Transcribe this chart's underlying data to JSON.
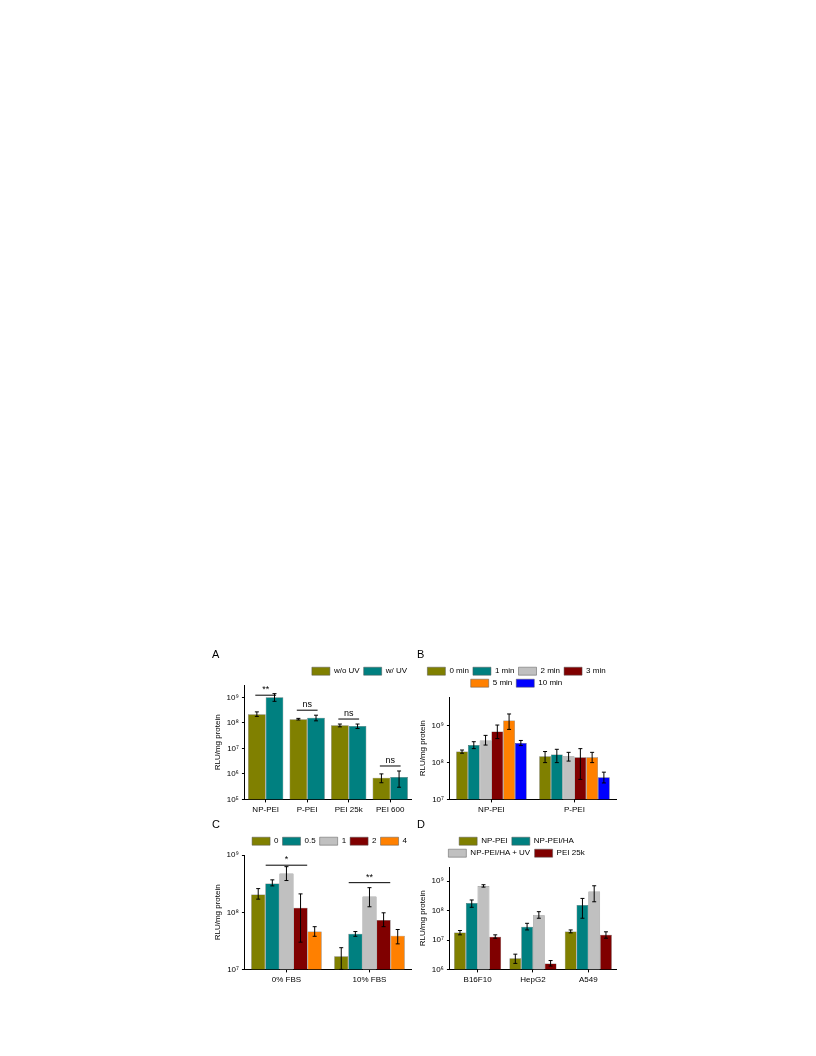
{
  "chart_data": [
    {
      "type": "bar",
      "title": "A",
      "ylabel": "RLU/mg protein",
      "categories": [
        "NP-PEI",
        "P-PEI",
        "PEI 25k",
        "PEI 600"
      ],
      "log": true,
      "ylim": [
        100000,
        3000000000
      ],
      "yticks": [
        {
          "value": 100000,
          "label": "10⁵"
        },
        {
          "value": 1000000,
          "label": "10⁶"
        },
        {
          "value": 10000000,
          "label": "10⁷"
        },
        {
          "value": 100000000,
          "label": "10⁸"
        },
        {
          "value": 1000000000,
          "label": "10⁹"
        }
      ],
      "legend": "top right",
      "grid": false,
      "series": [
        {
          "name": "w/o UV",
          "color": "#808000",
          "values": [
            220000000,
            140000000,
            80000000,
            700000
          ],
          "errors": [
            [
              180000000,
              270000000
            ],
            [
              130000000,
              150000000
            ],
            [
              70000000,
              90000000
            ],
            [
              450000,
              1000000
            ]
          ]
        },
        {
          "name": "w/ UV",
          "color": "#008080",
          "values": [
            1000000000,
            160000000,
            75000000,
            750000
          ],
          "errors": [
            [
              700000000,
              1400000000
            ],
            [
              120000000,
              200000000
            ],
            [
              60000000,
              90000000
            ],
            [
              300000,
              1300000
            ]
          ]
        }
      ],
      "annotations": [
        "**",
        "ns",
        "ns",
        "ns"
      ]
    },
    {
      "type": "bar",
      "title": "B",
      "ylabel": "RLU/mg protein",
      "categories": [
        "NP-PEI",
        "P-PEI"
      ],
      "log": true,
      "ylim": [
        10000000,
        6000000000
      ],
      "yticks": [
        {
          "value": 10000000,
          "label": "10⁷"
        },
        {
          "value": 100000000,
          "label": "10⁸"
        },
        {
          "value": 1000000000,
          "label": "10⁹"
        }
      ],
      "legend": "top",
      "grid": false,
      "series": [
        {
          "name": "0 min",
          "color": "#808000",
          "values": [
            200000000,
            150000000
          ],
          "errors": [
            [
              180000000,
              220000000
            ],
            [
              100000000,
              200000000
            ]
          ]
        },
        {
          "name": "1 min",
          "color": "#008080",
          "values": [
            300000000,
            165000000
          ],
          "errors": [
            [
              240000000,
              370000000
            ],
            [
              100000000,
              230000000
            ]
          ]
        },
        {
          "name": "2 min",
          "color": "#c0c0c0",
          "values": [
            400000000,
            150000000
          ],
          "errors": [
            [
              300000000,
              550000000
            ],
            [
              110000000,
              190000000
            ]
          ]
        },
        {
          "name": "3 min",
          "color": "#800000",
          "values": [
            700000000,
            140000000
          ],
          "errors": [
            [
              450000000,
              1050000000
            ],
            [
              35000000,
              240000000
            ]
          ]
        },
        {
          "name": "5 min",
          "color": "#ff8000",
          "values": [
            1400000000,
            140000000
          ],
          "errors": [
            [
              800000000,
              2100000000
            ],
            [
              100000000,
              190000000
            ]
          ]
        },
        {
          "name": "10 min",
          "color": "#0000ff",
          "values": [
            340000000,
            40000000
          ],
          "errors": [
            [
              290000000,
              400000000
            ],
            [
              28000000,
              55000000
            ]
          ]
        }
      ]
    },
    {
      "type": "bar",
      "title": "C",
      "ylabel": "RLU/mg protein",
      "categories": [
        "0% FBS",
        "10% FBS"
      ],
      "log": true,
      "ylim": [
        10000000,
        1000000000
      ],
      "yticks": [
        {
          "value": 10000000,
          "label": "10⁷"
        },
        {
          "value": 100000000,
          "label": "10⁸"
        },
        {
          "value": 1000000000,
          "label": "10⁹"
        }
      ],
      "legend": "top right",
      "grid": false,
      "series": [
        {
          "name": "0",
          "color": "#808000",
          "values": [
            205000000,
            17000000
          ],
          "errors": [
            [
              170000000,
              260000000
            ],
            [
              10000000,
              24000000
            ]
          ]
        },
        {
          "name": "0.5",
          "color": "#008080",
          "values": [
            320000000,
            42000000
          ],
          "errors": [
            [
              290000000,
              370000000
            ],
            [
              38000000,
              46000000
            ]
          ]
        },
        {
          "name": "1",
          "color": "#c0c0c0",
          "values": [
            480000000,
            190000000
          ],
          "errors": [
            [
              360000000,
              630000000
            ],
            [
              125000000,
              270000000
            ]
          ]
        },
        {
          "name": "2",
          "color": "#800000",
          "values": [
            120000000,
            73000000
          ],
          "errors": [
            [
              30000000,
              210000000
            ],
            [
              56000000,
              98000000
            ]
          ]
        },
        {
          "name": "4",
          "color": "#ff8000",
          "values": [
            46000000,
            39000000
          ],
          "errors": [
            [
              38000000,
              56000000
            ],
            [
              28000000,
              50000000
            ]
          ]
        }
      ],
      "annotations": [
        "*",
        "**"
      ]
    },
    {
      "type": "bar",
      "title": "D",
      "ylabel": "RLU/mg protein",
      "categories": [
        "B16F10",
        "HepG2",
        "A549"
      ],
      "log": true,
      "ylim": [
        1000000,
        3000000000
      ],
      "yticks": [
        {
          "value": 1000000,
          "label": "10⁶"
        },
        {
          "value": 10000000,
          "label": "10⁷"
        },
        {
          "value": 100000000,
          "label": "10⁸"
        },
        {
          "value": 1000000000,
          "label": "10⁹"
        }
      ],
      "legend": "top",
      "grid": false,
      "series": [
        {
          "name": "NP-PEI",
          "color": "#808000",
          "values": [
            18000000,
            2400000,
            19500000
          ],
          "errors": [
            [
              15000000,
              21000000
            ],
            [
              1600000,
              3300000
            ],
            [
              17500000,
              22000000
            ]
          ]
        },
        {
          "name": "NP-PEI/HA",
          "color": "#008080",
          "values": [
            180000000,
            28000000,
            155000000
          ],
          "errors": [
            [
              130000000,
              230000000
            ],
            [
              22000000,
              37000000
            ],
            [
              55000000,
              260000000
            ]
          ]
        },
        {
          "name": "NP-PEI/HA + UV",
          "color": "#c0c0c0",
          "values": [
            690000000,
            70000000,
            450000000
          ],
          "errors": [
            [
              630000000,
              760000000
            ],
            [
              55000000,
              92000000
            ],
            [
              200000000,
              700000000
            ]
          ]
        },
        {
          "name": "PEI 25k",
          "color": "#800000",
          "values": [
            13000000,
            1600000,
            15000000
          ],
          "errors": [
            [
              11500000,
              15000000
            ],
            [
              1300000,
              2000000
            ],
            [
              11500000,
              19000000
            ]
          ]
        }
      ]
    }
  ]
}
